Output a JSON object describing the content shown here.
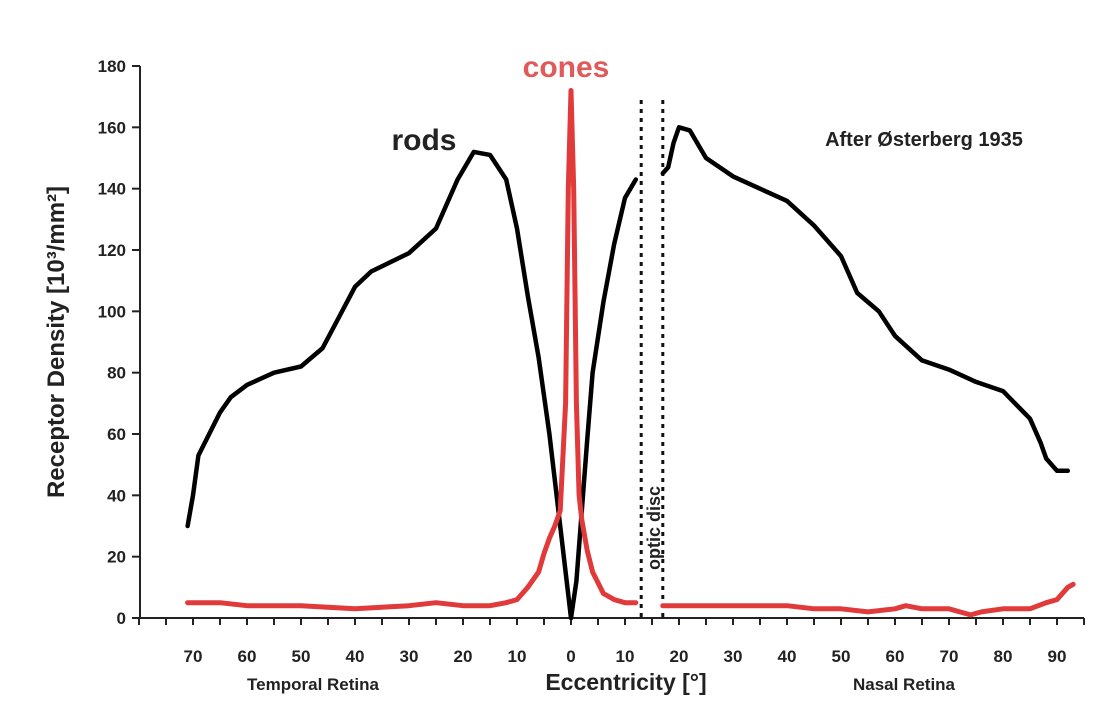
{
  "chart_data": {
    "type": "line",
    "ylabel": "Receptor Density [10³/mm²]",
    "xlabel": "Eccentricity [°]",
    "left_region_label": "Temporal Retina",
    "right_region_label": "Nasal Retina",
    "annotation": "After Østerberg 1935",
    "disc_label": "optic disc",
    "ylim": [
      0,
      180
    ],
    "yticks": [
      0,
      20,
      40,
      60,
      80,
      100,
      120,
      140,
      160,
      180
    ],
    "xticks_left": [
      70,
      60,
      50,
      40,
      30,
      20,
      10,
      0
    ],
    "xticks_right": [
      10,
      20,
      30,
      40,
      50,
      60,
      70,
      80,
      90
    ],
    "optic_disc_range": [
      13,
      17
    ],
    "colors": {
      "rods": "#000000",
      "cones": "#e03a3a",
      "axis": "#222222"
    },
    "series": [
      {
        "name": "rods",
        "segments": [
          [
            [
              -71,
              30
            ],
            [
              -70,
              40
            ],
            [
              -69,
              53
            ],
            [
              -67,
              60
            ],
            [
              -65,
              67
            ],
            [
              -63,
              72
            ],
            [
              -60,
              76
            ],
            [
              -55,
              80
            ],
            [
              -50,
              82
            ],
            [
              -46,
              88
            ],
            [
              -43,
              98
            ],
            [
              -40,
              108
            ],
            [
              -37,
              113
            ],
            [
              -30,
              119
            ],
            [
              -25,
              127
            ],
            [
              -21,
              143
            ],
            [
              -18,
              152
            ],
            [
              -15,
              151
            ],
            [
              -12,
              143
            ],
            [
              -10,
              127
            ],
            [
              -8,
              105
            ],
            [
              -6,
              85
            ],
            [
              -4,
              60
            ],
            [
              -2,
              30
            ],
            [
              0,
              0
            ],
            [
              1,
              12
            ],
            [
              2,
              35
            ],
            [
              3,
              58
            ],
            [
              4,
              80
            ],
            [
              6,
              103
            ],
            [
              8,
              122
            ],
            [
              10,
              137
            ],
            [
              12,
              143
            ]
          ],
          [
            [
              17,
              145
            ],
            [
              18,
              147
            ],
            [
              19,
              155
            ],
            [
              20,
              160
            ],
            [
              22,
              159
            ],
            [
              25,
              150
            ],
            [
              30,
              144
            ],
            [
              35,
              140
            ],
            [
              40,
              136
            ],
            [
              45,
              128
            ],
            [
              50,
              118
            ],
            [
              53,
              106
            ],
            [
              55,
              103
            ],
            [
              57,
              100
            ],
            [
              60,
              92
            ],
            [
              65,
              84
            ],
            [
              70,
              81
            ],
            [
              75,
              77
            ],
            [
              80,
              74
            ],
            [
              85,
              65
            ],
            [
              87,
              57
            ],
            [
              88,
              52
            ],
            [
              89,
              50
            ],
            [
              90,
              48
            ],
            [
              92,
              48
            ]
          ]
        ]
      },
      {
        "name": "cones",
        "segments": [
          [
            [
              -71,
              5
            ],
            [
              -65,
              5
            ],
            [
              -60,
              4
            ],
            [
              -50,
              4
            ],
            [
              -40,
              3
            ],
            [
              -30,
              4
            ],
            [
              -25,
              5
            ],
            [
              -20,
              4
            ],
            [
              -15,
              4
            ],
            [
              -12,
              5
            ],
            [
              -10,
              6
            ],
            [
              -8,
              10
            ],
            [
              -6,
              15
            ],
            [
              -5,
              21
            ],
            [
              -4,
              26
            ],
            [
              -3,
              30
            ],
            [
              -2,
              35
            ],
            [
              -1,
              70
            ],
            [
              -0.5,
              140
            ],
            [
              0,
              172
            ],
            [
              0.5,
              140
            ],
            [
              1,
              70
            ],
            [
              1.5,
              40
            ],
            [
              2,
              32
            ],
            [
              3,
              22
            ],
            [
              4,
              15
            ],
            [
              6,
              8
            ],
            [
              8,
              6
            ],
            [
              10,
              5
            ],
            [
              12,
              5
            ]
          ],
          [
            [
              17,
              4
            ],
            [
              20,
              4
            ],
            [
              25,
              4
            ],
            [
              30,
              4
            ],
            [
              40,
              4
            ],
            [
              45,
              3
            ],
            [
              50,
              3
            ],
            [
              55,
              2
            ],
            [
              60,
              3
            ],
            [
              62,
              4
            ],
            [
              65,
              3
            ],
            [
              70,
              3
            ],
            [
              72,
              2
            ],
            [
              74,
              1
            ],
            [
              76,
              2
            ],
            [
              80,
              3
            ],
            [
              85,
              3
            ],
            [
              88,
              5
            ],
            [
              90,
              6
            ],
            [
              92,
              10
            ],
            [
              93,
              11
            ]
          ]
        ]
      }
    ]
  }
}
